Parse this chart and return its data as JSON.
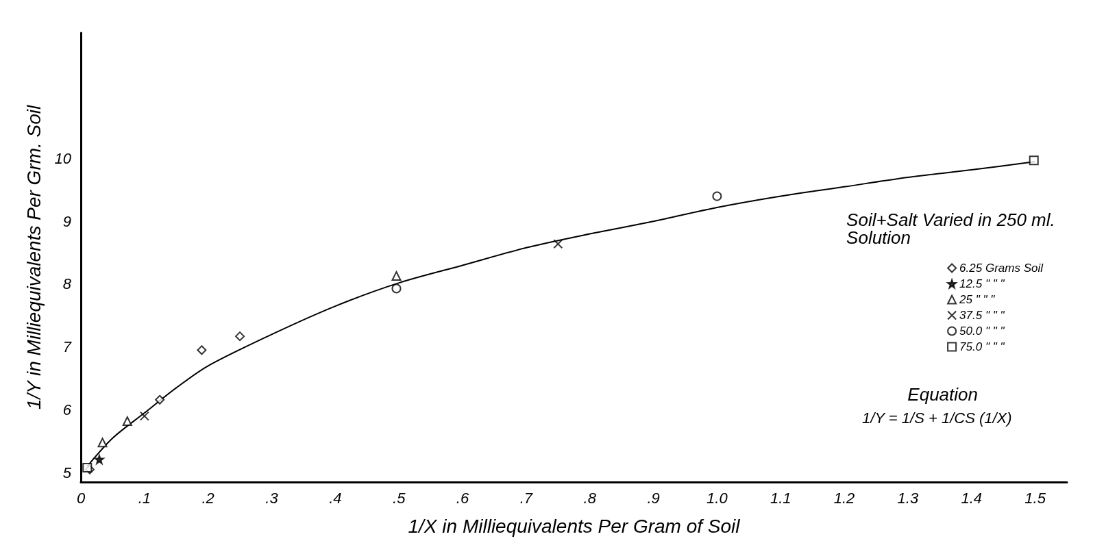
{
  "chart_data": {
    "type": "scatter",
    "xlabel": "1/X in Milliequivalents Per Gram of Soil",
    "ylabel": "1/Y in Milliequivalents Per Grm. Soil",
    "legend_title": "Soil+Salt Varied in 250 ml. Solution",
    "annotations": [
      "Equation",
      "1/Y = 1/S + 1/CS (1/X)"
    ],
    "xlim": [
      0,
      1.55
    ],
    "xticks": [
      0,
      {
        "value": 0.1,
        "label": ".1"
      },
      {
        "value": 0.2,
        "label": ".2"
      },
      {
        "value": 0.3,
        "label": ".3"
      },
      {
        "value": 0.4,
        "label": ".4"
      },
      {
        "value": 0.5,
        "label": ".5"
      },
      {
        "value": 0.6,
        "label": ".6"
      },
      {
        "value": 0.7,
        "label": ".7"
      },
      {
        "value": 0.8,
        "label": ".8"
      },
      {
        "value": 0.9,
        "label": ".9"
      },
      {
        "value": 1.0,
        "label": "1.0"
      },
      1.1,
      1.2,
      1.3,
      1.4,
      1.5
    ],
    "ylim": [
      4.85,
      12
    ],
    "yticks": [
      5,
      6,
      7,
      8,
      9,
      10
    ],
    "grid": false,
    "legend": "right",
    "series": [
      {
        "name": "6.25 Grams Soil",
        "color": "#000000",
        "marker": "diamond",
        "x": [
          0.014,
          0.124,
          0.19,
          0.25
        ],
        "values": [
          5.05,
          6.16,
          6.95,
          7.17
        ]
      },
      {
        "name": "12.5 \" \" \"",
        "color": "#000000",
        "marker": "star",
        "x": [
          0.029
        ],
        "values": [
          5.21
        ]
      },
      {
        "name": "25 \" \" \"",
        "color": "#000000",
        "marker": "triangle",
        "x": [
          0.034,
          0.073,
          0.496
        ],
        "values": [
          5.48,
          5.82,
          8.13
        ]
      },
      {
        "name": "37.5 \" \" \"",
        "color": "#000000",
        "marker": "cross",
        "x": [
          0.1,
          0.75
        ],
        "values": [
          5.9,
          8.64
        ]
      },
      {
        "name": "50.0 \" \" \"",
        "color": "#000000",
        "marker": "circle",
        "x": [
          0.496,
          1.0
        ],
        "values": [
          7.93,
          9.4
        ]
      },
      {
        "name": "75.0 \" \" \"",
        "color": "#000000",
        "marker": "square",
        "x": [
          0.01,
          1.498
        ],
        "values": [
          5.08,
          9.97
        ]
      },
      {
        "type": "line",
        "color": "#000000",
        "marker": "none",
        "line_style": "solid",
        "x": [
          0.01,
          0.05,
          0.1,
          0.15,
          0.2,
          0.3,
          0.4,
          0.5,
          0.6,
          0.7,
          0.8,
          0.9,
          1.0,
          1.1,
          1.2,
          1.3,
          1.4,
          1.5
        ],
        "values": [
          5.1,
          5.55,
          5.95,
          6.35,
          6.7,
          7.2,
          7.65,
          8.02,
          8.3,
          8.58,
          8.8,
          9.0,
          9.22,
          9.4,
          9.55,
          9.7,
          9.82,
          9.95
        ]
      }
    ]
  }
}
